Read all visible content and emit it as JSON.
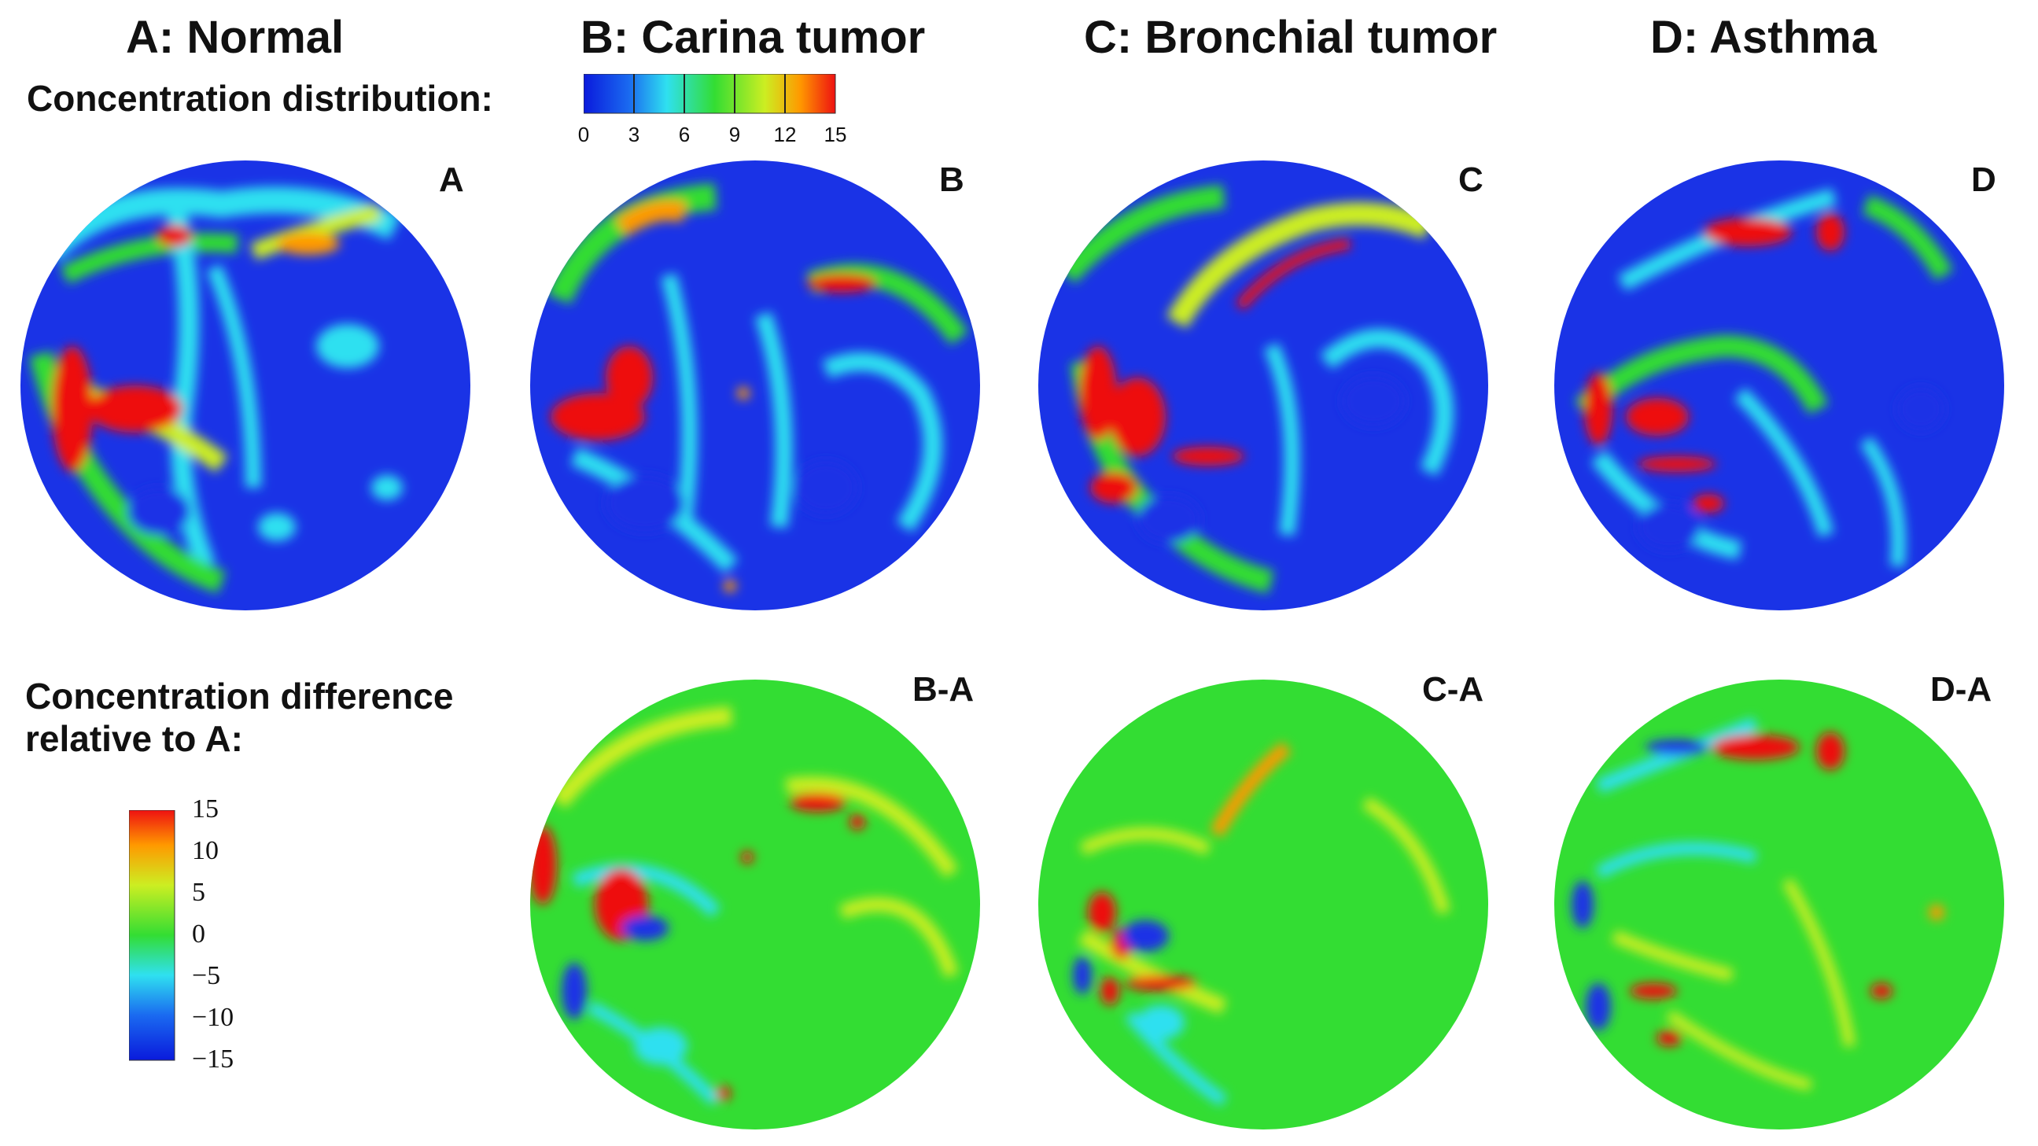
{
  "titles": {
    "a": "A: Normal",
    "b": "B: Carina tumor",
    "c": "C: Bronchial tumor",
    "d": "D: Asthma"
  },
  "concentration": {
    "label": "Concentration distribution:",
    "ticks": [
      "0",
      "3",
      "6",
      "9",
      "12",
      "15"
    ],
    "range": [
      0,
      15
    ]
  },
  "difference": {
    "label_line1": "Concentration difference",
    "label_line2": "relative to A:",
    "ticks": [
      "15",
      "10",
      "5",
      "0",
      "−5",
      "−10",
      "−15"
    ],
    "range": [
      -15,
      15
    ]
  },
  "panels": {
    "a": "A",
    "b": "B",
    "c": "C",
    "d": "D",
    "ba": "B-A",
    "ca": "C-A",
    "da": "D-A"
  },
  "colors": {
    "blue": "#1a33e6",
    "cyan": "#2fe0f0",
    "green": "#33dd33",
    "yellow": "#ffee22",
    "orange": "#ff9900",
    "red": "#ee1111"
  }
}
